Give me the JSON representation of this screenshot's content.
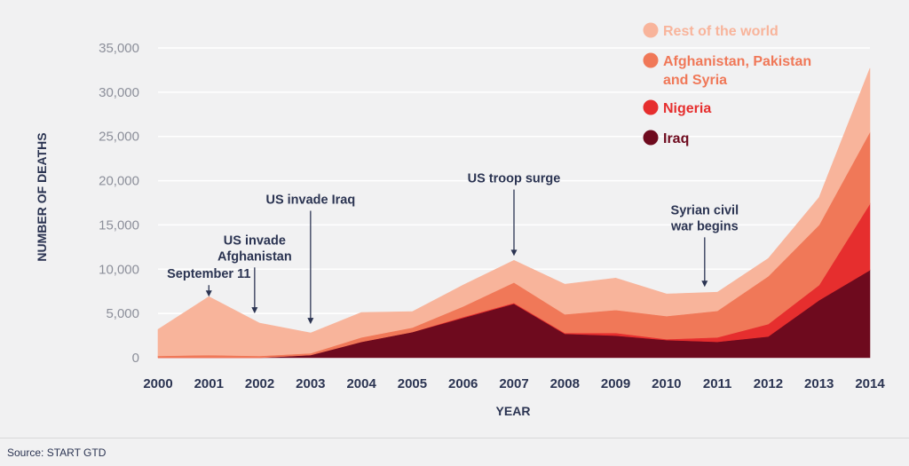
{
  "chart_data": {
    "type": "area",
    "stacked": true,
    "x": [
      2000,
      2001,
      2002,
      2003,
      2004,
      2005,
      2006,
      2007,
      2008,
      2009,
      2010,
      2011,
      2012,
      2013,
      2014
    ],
    "x_tick_labels": [
      "2000",
      "2001",
      "2002",
      "2003",
      "2004",
      "2005",
      "2006",
      "2007",
      "2008",
      "2009",
      "2010",
      "2011",
      "2012",
      "2013",
      "2014"
    ],
    "series": [
      {
        "name": "Iraq",
        "color": "#6e0a1e",
        "values": [
          0,
          0,
          0,
          300,
          1800,
          2900,
          4500,
          6100,
          2700,
          2500,
          2000,
          1800,
          2400,
          6500,
          9900
        ]
      },
      {
        "name": "Nigeria",
        "color": "#e62e2e",
        "values": [
          0,
          0,
          0,
          0,
          0,
          0,
          100,
          100,
          100,
          300,
          100,
          500,
          1400,
          1700,
          7500
        ]
      },
      {
        "name": "Afghanistan, Pakistan and Syria",
        "color": "#f07858",
        "values": [
          200,
          300,
          200,
          200,
          500,
          500,
          1200,
          2300,
          2100,
          2600,
          2600,
          3000,
          5400,
          6800,
          8100
        ]
      },
      {
        "name": "Rest of the world",
        "color": "#f8b49b",
        "values": [
          3000,
          6600,
          3700,
          2300,
          2800,
          1800,
          2400,
          2500,
          3400,
          3600,
          2500,
          2100,
          2000,
          3100,
          7200
        ]
      }
    ],
    "legend_order": [
      "Rest of the world",
      "Afghanistan, Pakistan and Syria",
      "Nigeria",
      "Iraq"
    ],
    "legend_lines": [
      [
        "Rest of the world"
      ],
      [
        "Afghanistan, Pakistan",
        "and Syria"
      ],
      [
        "Nigeria"
      ],
      [
        "Iraq"
      ]
    ],
    "xlabel": "YEAR",
    "ylabel": "NUMBER OF DEATHS",
    "ylim": [
      0,
      35000
    ],
    "y_ticks": [
      0,
      5000,
      10000,
      15000,
      20000,
      25000,
      30000,
      35000
    ],
    "y_tick_labels": [
      "0",
      "5,000",
      "10,000",
      "15,000",
      "20,000",
      "25,000",
      "30,000",
      "35,000"
    ],
    "grid": true,
    "legend_position": "top-right",
    "annotations": [
      {
        "lines": [
          "September 11"
        ],
        "x": 2001,
        "arrow_from": 8200,
        "arrow_to": 6900
      },
      {
        "lines": [
          "US invade",
          "Afghanistan"
        ],
        "x": 2001.9,
        "arrow_from": 10200,
        "arrow_to": 5000
      },
      {
        "lines": [
          "US invade Iraq"
        ],
        "x": 2003,
        "arrow_from": 16600,
        "arrow_to": 3800
      },
      {
        "lines": [
          "US troop surge"
        ],
        "x": 2007,
        "arrow_from": 19000,
        "arrow_to": 11500
      },
      {
        "lines": [
          "Syrian civil",
          "war begins"
        ],
        "x": 2010.75,
        "arrow_from": 13600,
        "arrow_to": 8000
      }
    ]
  },
  "footer": {
    "source": "Source: START GTD"
  }
}
